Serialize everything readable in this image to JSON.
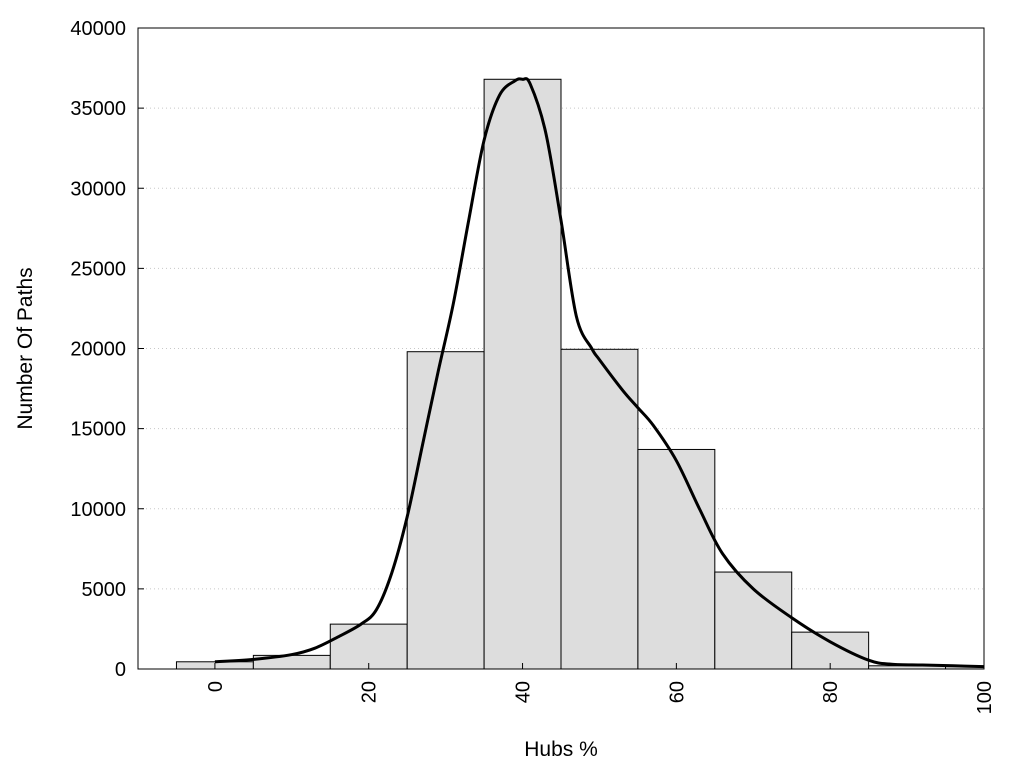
{
  "chart_data": {
    "type": "bar",
    "title": "",
    "xlabel": "Hubs %",
    "ylabel": "Number Of Paths",
    "xlim": [
      -10,
      100
    ],
    "ylim": [
      0,
      40000
    ],
    "xticks": [
      0,
      20,
      40,
      60,
      80,
      100
    ],
    "yticks": [
      0,
      5000,
      10000,
      15000,
      20000,
      25000,
      30000,
      35000,
      40000
    ],
    "grid": "horizontal dotted",
    "bar_color": "#dddddd",
    "bins": [
      {
        "from": -5,
        "to": 5,
        "value": 450
      },
      {
        "from": 5,
        "to": 15,
        "value": 850
      },
      {
        "from": 15,
        "to": 25,
        "value": 2800
      },
      {
        "from": 25,
        "to": 35,
        "value": 19800
      },
      {
        "from": 35,
        "to": 45,
        "value": 36800
      },
      {
        "from": 45,
        "to": 55,
        "value": 19950
      },
      {
        "from": 55,
        "to": 65,
        "value": 13700
      },
      {
        "from": 65,
        "to": 75,
        "value": 6050
      },
      {
        "from": 75,
        "to": 85,
        "value": 2300
      },
      {
        "from": 85,
        "to": 95,
        "value": 200
      },
      {
        "from": 95,
        "to": 100,
        "value": 150
      }
    ],
    "curve": {
      "x": [
        0,
        5,
        10,
        13,
        16,
        19,
        21,
        23,
        25,
        27,
        29,
        31,
        33,
        35,
        37,
        39,
        40,
        41,
        43,
        45,
        47,
        49,
        50,
        53,
        55,
        57,
        60,
        63,
        66,
        70,
        75,
        80,
        85,
        88,
        92,
        96,
        100
      ],
      "y": [
        450,
        600,
        900,
        1300,
        2000,
        2800,
        3700,
        6000,
        9500,
        14000,
        18500,
        22800,
        28000,
        33000,
        35800,
        36700,
        36800,
        36500,
        33500,
        28000,
        22000,
        20000,
        19300,
        17400,
        16300,
        15200,
        13000,
        10000,
        7200,
        5000,
        3200,
        1700,
        550,
        300,
        250,
        200,
        150
      ]
    }
  }
}
